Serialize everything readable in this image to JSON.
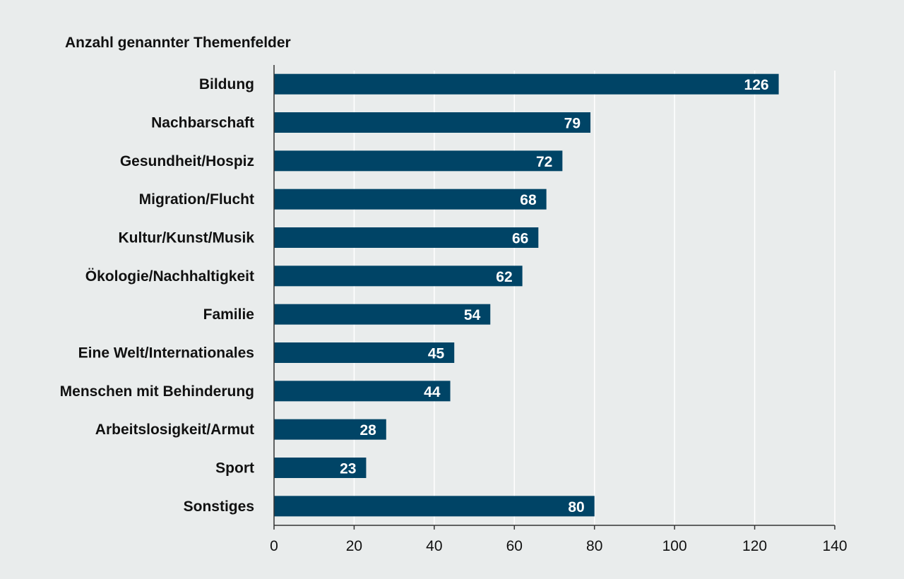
{
  "colors": {
    "background": "#e9ecec",
    "bar": "#004466",
    "gridline": "#ffffff",
    "axis": "#333333"
  },
  "chart_data": {
    "type": "bar",
    "orientation": "horizontal",
    "title": "Anzahl genannter Themenfelder",
    "xlabel": "",
    "ylabel": "",
    "categories": [
      "Bildung",
      "Nachbarschaft",
      "Gesundheit/Hospiz",
      "Migration/Flucht",
      "Kultur/Kunst/Musik",
      "Ökologie/Nachhaltigkeit",
      "Familie",
      "Eine Welt/Internationales",
      "Menschen mit Behinderung",
      "Arbeitslosigkeit/Armut",
      "Sport",
      "Sonstiges"
    ],
    "values": [
      126,
      79,
      72,
      68,
      66,
      62,
      54,
      45,
      44,
      28,
      23,
      80
    ],
    "xlim": [
      0,
      140
    ],
    "xticks": [
      0,
      20,
      40,
      60,
      80,
      100,
      120,
      140
    ],
    "grid": true,
    "data_labels": true
  }
}
